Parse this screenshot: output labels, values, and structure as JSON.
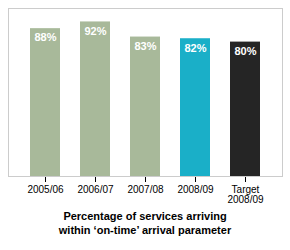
{
  "chart_data": {
    "type": "bar",
    "title": "Percentage of services arriving\nwithin ‘on-time’ arrival parameter",
    "categories": [
      "2005/06",
      "2006/07",
      "2007/08",
      "2008/09",
      "Target\n2008/09"
    ],
    "values": [
      88,
      92,
      83,
      82,
      80
    ],
    "value_labels": [
      "88%",
      "92%",
      "83%",
      "82%",
      "80%"
    ],
    "colors": [
      "#a8b99a",
      "#a8b99a",
      "#a8b99a",
      "#1aafc8",
      "#252525"
    ],
    "data_labels": true,
    "ylim": [
      0,
      100
    ],
    "grid": false,
    "tick_labels": "x"
  }
}
